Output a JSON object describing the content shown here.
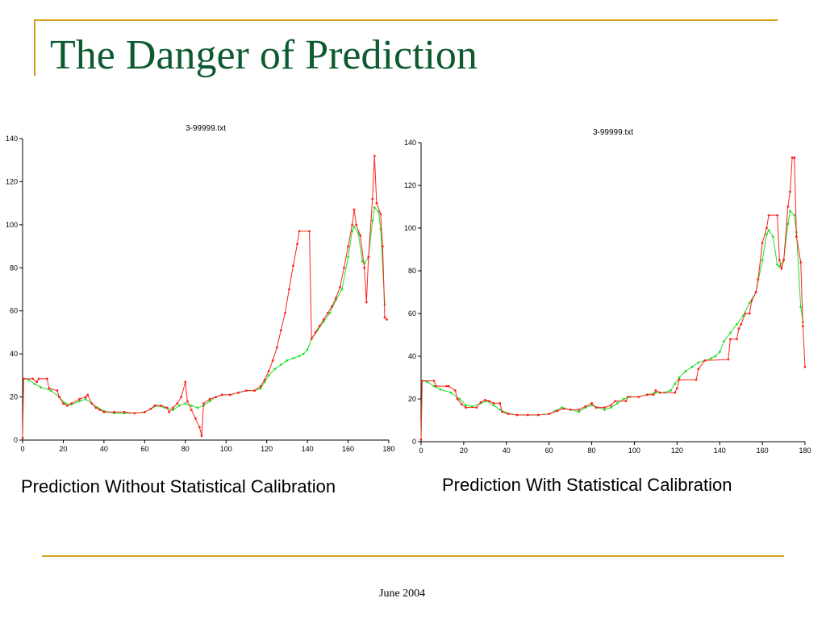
{
  "slide": {
    "title": "The Danger of Prediction",
    "footer": "June 2004",
    "accent_color": "#d4a017",
    "title_color": "#0c5a2e"
  },
  "chart_data": [
    {
      "type": "line",
      "title": "3-99999.txt",
      "caption": "Prediction Without Statistical Calibration",
      "xlabel": "",
      "ylabel": "",
      "xlim": [
        0,
        180
      ],
      "ylim": [
        0,
        140
      ],
      "x_ticks": [
        0,
        20,
        40,
        60,
        80,
        100,
        120,
        140,
        160,
        180
      ],
      "y_ticks": [
        0,
        20,
        40,
        60,
        80,
        100,
        120,
        140
      ],
      "grid": false,
      "series": [
        {
          "color": "#ff2020",
          "points": [
            [
              0,
              1
            ],
            [
              0.5,
              28.5
            ],
            [
              5,
              28.5
            ],
            [
              7,
              27
            ],
            [
              8,
              28.5
            ],
            [
              12,
              28.5
            ],
            [
              13,
              24
            ],
            [
              17,
              23
            ],
            [
              18,
              20
            ],
            [
              20,
              17
            ],
            [
              22,
              16
            ],
            [
              24,
              17
            ],
            [
              28,
              19
            ],
            [
              31,
              20
            ],
            [
              32,
              21
            ],
            [
              34,
              17
            ],
            [
              36,
              15
            ],
            [
              38,
              14
            ],
            [
              40,
              13
            ],
            [
              45,
              13
            ],
            [
              50,
              13
            ],
            [
              55,
              12.5
            ],
            [
              60,
              13
            ],
            [
              63,
              14.5
            ],
            [
              65,
              16
            ],
            [
              68,
              16
            ],
            [
              71,
              15
            ],
            [
              72,
              13
            ],
            [
              74,
              15
            ],
            [
              76,
              17
            ],
            [
              78,
              20
            ],
            [
              80,
              27
            ],
            [
              81,
              18
            ],
            [
              83,
              14
            ],
            [
              85,
              10
            ],
            [
              87,
              6
            ],
            [
              88,
              2
            ],
            [
              89,
              17
            ],
            [
              92,
              19
            ],
            [
              95,
              20
            ],
            [
              98,
              21
            ],
            [
              102,
              21
            ],
            [
              106,
              22
            ],
            [
              110,
              23
            ],
            [
              114,
              23
            ],
            [
              117,
              25
            ],
            [
              119,
              28
            ],
            [
              121,
              32
            ],
            [
              123,
              37
            ],
            [
              125,
              43
            ],
            [
              127,
              51
            ],
            [
              129,
              59
            ],
            [
              131,
              70
            ],
            [
              133,
              81
            ],
            [
              135,
              91
            ],
            [
              136,
              97
            ],
            [
              141,
              97
            ],
            [
              142,
              47
            ],
            [
              144,
              50
            ],
            [
              146,
              53
            ],
            [
              148,
              56
            ],
            [
              150,
              59
            ],
            [
              152,
              62
            ],
            [
              154,
              66
            ],
            [
              156,
              71
            ],
            [
              158,
              80
            ],
            [
              160,
              90
            ],
            [
              162,
              100
            ],
            [
              163,
              107
            ],
            [
              164,
              100
            ],
            [
              166,
              95
            ],
            [
              168,
              80
            ],
            [
              169,
              64
            ],
            [
              170,
              85
            ],
            [
              172,
              112
            ],
            [
              173,
              132
            ],
            [
              174,
              110
            ],
            [
              176,
              105
            ],
            [
              177,
              90
            ],
            [
              178,
              57
            ],
            [
              179,
              56
            ]
          ]
        },
        {
          "color": "#22dd22",
          "points": [
            [
              0,
              1
            ],
            [
              0.5,
              28.5
            ],
            [
              3,
              28
            ],
            [
              6,
              26
            ],
            [
              9,
              24.5
            ],
            [
              14,
              23
            ],
            [
              18,
              20
            ],
            [
              21,
              17
            ],
            [
              24,
              16.5
            ],
            [
              28,
              18
            ],
            [
              31,
              19
            ],
            [
              34,
              17
            ],
            [
              37,
              15
            ],
            [
              40,
              13.5
            ],
            [
              45,
              12.5
            ],
            [
              50,
              12.5
            ],
            [
              55,
              12.5
            ],
            [
              60,
              13
            ],
            [
              63,
              14.5
            ],
            [
              66,
              16
            ],
            [
              70,
              15
            ],
            [
              74,
              14
            ],
            [
              77,
              16
            ],
            [
              80,
              17
            ],
            [
              83,
              16
            ],
            [
              86,
              15
            ],
            [
              89,
              16
            ],
            [
              92,
              18
            ],
            [
              95,
              20
            ],
            [
              98,
              21
            ],
            [
              102,
              21
            ],
            [
              106,
              22
            ],
            [
              110,
              23
            ],
            [
              114,
              23
            ],
            [
              117,
              24
            ],
            [
              119,
              27
            ],
            [
              121,
              30
            ],
            [
              124,
              33
            ],
            [
              127,
              35
            ],
            [
              130,
              37
            ],
            [
              133,
              38
            ],
            [
              136,
              39
            ],
            [
              138,
              40
            ],
            [
              140,
              42
            ],
            [
              142,
              47
            ],
            [
              145,
              51
            ],
            [
              148,
              55
            ],
            [
              151,
              59
            ],
            [
              154,
              65
            ],
            [
              157,
              70
            ],
            [
              160,
              85
            ],
            [
              162,
              97
            ],
            [
              163,
              99
            ],
            [
              165,
              96
            ],
            [
              167,
              83
            ],
            [
              168,
              82
            ],
            [
              170,
              85
            ],
            [
              172,
              102
            ],
            [
              173,
              108
            ],
            [
              175,
              106
            ],
            [
              176,
              98
            ],
            [
              178,
              63
            ]
          ]
        }
      ]
    },
    {
      "type": "line",
      "title": "3-99999.txt",
      "caption": "Prediction With Statistical Calibration",
      "xlabel": "",
      "ylabel": "",
      "xlim": [
        0,
        180
      ],
      "ylim": [
        0,
        140
      ],
      "x_ticks": [
        0,
        20,
        40,
        60,
        80,
        100,
        120,
        140,
        160,
        180
      ],
      "y_ticks": [
        0,
        20,
        40,
        60,
        80,
        100,
        120,
        140
      ],
      "grid": false,
      "series": [
        {
          "color": "#ff2020",
          "points": [
            [
              0,
              1
            ],
            [
              0.5,
              28.5
            ],
            [
              6,
              28.5
            ],
            [
              7,
              26
            ],
            [
              12,
              26
            ],
            [
              13,
              26
            ],
            [
              16,
              24
            ],
            [
              17,
              20
            ],
            [
              19,
              17.5
            ],
            [
              21,
              16
            ],
            [
              26,
              16
            ],
            [
              28,
              18.5
            ],
            [
              30,
              19.5
            ],
            [
              32,
              19
            ],
            [
              34,
              18
            ],
            [
              37,
              18
            ],
            [
              38,
              14
            ],
            [
              41,
              13
            ],
            [
              45,
              12.5
            ],
            [
              50,
              12.5
            ],
            [
              55,
              12.5
            ],
            [
              60,
              13
            ],
            [
              64,
              14.5
            ],
            [
              67,
              15.5
            ],
            [
              70,
              15
            ],
            [
              74,
              15
            ],
            [
              77,
              16.5
            ],
            [
              80,
              18
            ],
            [
              82,
              16
            ],
            [
              86,
              16
            ],
            [
              89,
              17
            ],
            [
              91,
              19
            ],
            [
              96,
              19
            ],
            [
              97,
              21
            ],
            [
              102,
              21
            ],
            [
              106,
              22
            ],
            [
              109,
              22
            ],
            [
              110,
              24
            ],
            [
              112,
              23
            ],
            [
              119,
              23
            ],
            [
              120,
              25
            ],
            [
              121,
              29
            ],
            [
              129,
              29
            ],
            [
              130,
              34
            ],
            [
              133,
              38
            ],
            [
              144,
              38.5
            ],
            [
              145,
              48
            ],
            [
              148,
              48
            ],
            [
              149,
              53
            ],
            [
              150,
              55
            ],
            [
              152,
              60
            ],
            [
              154,
              60
            ],
            [
              155,
              66
            ],
            [
              157,
              70
            ],
            [
              158,
              76
            ],
            [
              160,
              93
            ],
            [
              162,
              100
            ],
            [
              163,
              106
            ],
            [
              167,
              106
            ],
            [
              168,
              85
            ],
            [
              169,
              81
            ],
            [
              170,
              85
            ],
            [
              172,
              110
            ],
            [
              173,
              117
            ],
            [
              174,
              133
            ],
            [
              175,
              133
            ],
            [
              176,
              96
            ],
            [
              178,
              84
            ],
            [
              179,
              54
            ],
            [
              180,
              35
            ]
          ]
        },
        {
          "color": "#22dd22",
          "points": [
            [
              0,
              1
            ],
            [
              0.5,
              28.5
            ],
            [
              3,
              28
            ],
            [
              6,
              26
            ],
            [
              9,
              24.5
            ],
            [
              14,
              23
            ],
            [
              18,
              20
            ],
            [
              21,
              17
            ],
            [
              24,
              16.5
            ],
            [
              28,
              18
            ],
            [
              31,
              19
            ],
            [
              34,
              17
            ],
            [
              37,
              15
            ],
            [
              40,
              13.5
            ],
            [
              45,
              12.5
            ],
            [
              50,
              12.5
            ],
            [
              55,
              12.5
            ],
            [
              60,
              13
            ],
            [
              63,
              14.5
            ],
            [
              66,
              16
            ],
            [
              70,
              15
            ],
            [
              74,
              14
            ],
            [
              77,
              16
            ],
            [
              80,
              17
            ],
            [
              83,
              16
            ],
            [
              86,
              15
            ],
            [
              89,
              16
            ],
            [
              92,
              18
            ],
            [
              95,
              20
            ],
            [
              98,
              21
            ],
            [
              102,
              21
            ],
            [
              106,
              22
            ],
            [
              110,
              23
            ],
            [
              114,
              23
            ],
            [
              117,
              24
            ],
            [
              119,
              27
            ],
            [
              121,
              30
            ],
            [
              124,
              33
            ],
            [
              127,
              35
            ],
            [
              130,
              37
            ],
            [
              133,
              38
            ],
            [
              136,
              39
            ],
            [
              138,
              40
            ],
            [
              140,
              42
            ],
            [
              142,
              47
            ],
            [
              145,
              51
            ],
            [
              148,
              55
            ],
            [
              151,
              59
            ],
            [
              154,
              65
            ],
            [
              157,
              70
            ],
            [
              160,
              85
            ],
            [
              162,
              97
            ],
            [
              163,
              99
            ],
            [
              165,
              96
            ],
            [
              167,
              83
            ],
            [
              168,
              82
            ],
            [
              170,
              85
            ],
            [
              172,
              102
            ],
            [
              173,
              108
            ],
            [
              175,
              106
            ],
            [
              176,
              98
            ],
            [
              178,
              63
            ],
            [
              179,
              56
            ]
          ]
        }
      ]
    }
  ]
}
